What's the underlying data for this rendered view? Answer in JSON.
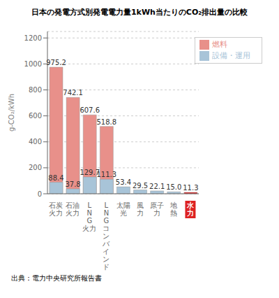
{
  "chart_data": {
    "type": "bar",
    "title": "日本の発電方式別発電電力量1kWh当たりのCO₂排出量の比較",
    "ylabel": "g-CO₂/kWh",
    "source": "出典：電力中央研究所報告書",
    "categories": [
      "石炭\n火力",
      "石油\n火力",
      "L\nN\nG\n火力",
      "L\nN\nG\nコ\nン\nバ\nイ\nン\nド",
      "太陽\n光",
      "風\n力",
      "原子\n力",
      "地\n熱",
      "水\n力"
    ],
    "series": [
      {
        "name": "燃料",
        "color": "#E8908A",
        "values": [
          975.2,
          742.1,
          607.6,
          518.8,
          null,
          null,
          null,
          null,
          null
        ],
        "value_labels": [
          "975.2",
          "742.1",
          "607.6",
          "518.8",
          null,
          null,
          null,
          null,
          null
        ]
      },
      {
        "name": "設備・運用",
        "color": "#A8C4D8",
        "colors": [
          "#A8C4D8",
          "#A8C4D8",
          "#A8C4D8",
          "#A8C4D8",
          "#A8C4D8",
          "#A8C4D8",
          "#A8C4D8",
          "#A8C4D8",
          "#DD2222"
        ],
        "values": [
          88.4,
          37.8,
          129.7,
          111.3,
          53.4,
          29.5,
          22.1,
          15.0,
          11.3
        ],
        "value_labels": [
          "88.4",
          "37.8",
          "129.7",
          "111.3",
          "53.4",
          "29.5",
          "22.1",
          "15.0",
          "11.3"
        ]
      }
    ],
    "ylim": [
      0,
      1250
    ],
    "yticks": [
      0,
      200,
      400,
      600,
      800,
      1000,
      1200
    ],
    "grid": true,
    "legend": "upper right",
    "data_labels": true
  }
}
